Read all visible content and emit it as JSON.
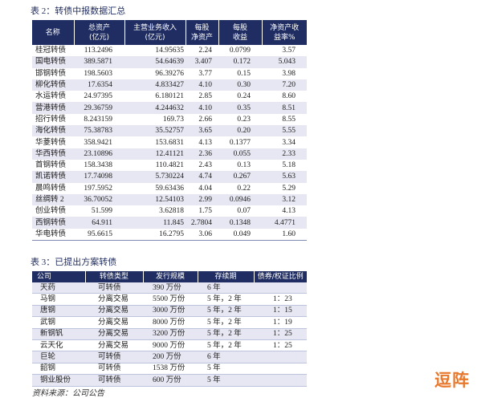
{
  "table2": {
    "title": "表 2：转债中报数据汇总",
    "headers": [
      [
        "名称"
      ],
      [
        "总资产",
        "(亿元)"
      ],
      [
        "主营业务收入",
        "(亿元)"
      ],
      [
        "每股",
        "净资产"
      ],
      [
        "每股",
        "收益"
      ],
      [
        "净资产收",
        "益率%"
      ]
    ],
    "rows": [
      [
        "桂冠转债",
        "113.2496",
        "14.95635",
        "2.24",
        "0.0799",
        "3.57"
      ],
      [
        "国电转债",
        "389.5871",
        "54.64639",
        "3.407",
        "0.172",
        "5.043"
      ],
      [
        "邯钢转债",
        "198.5603",
        "96.39276",
        "3.77",
        "0.15",
        "3.98"
      ],
      [
        "柳化转债",
        "17.6354",
        "4.833427",
        "4.10",
        "0.30",
        "7.20"
      ],
      [
        "水运转债",
        "24.97395",
        "6.180121",
        "2.85",
        "0.24",
        "8.60"
      ],
      [
        "营港转债",
        "29.36759",
        "4.244632",
        "4.10",
        "0.35",
        "8.51"
      ],
      [
        "招行转债",
        "8.243159",
        "169.73",
        "2.66",
        "0.23",
        "8.55"
      ],
      [
        "海化转债",
        "75.38783",
        "35.52757",
        "3.65",
        "0.20",
        "5.55"
      ],
      [
        "华菱转债",
        "358.9421",
        "153.6831",
        "4.13",
        "0.1377",
        "3.34"
      ],
      [
        "华西转债",
        "23.10896",
        "12.41121",
        "2.36",
        "0.055",
        "2.33"
      ],
      [
        "首钢转债",
        "158.3438",
        "110.4821",
        "2.43",
        "0.13",
        "5.18"
      ],
      [
        "凯诺转债",
        "17.74098",
        "5.730224",
        "4.74",
        "0.267",
        "5.63"
      ],
      [
        "晨鸣转债",
        "197.5952",
        "59.63436",
        "4.04",
        "0.22",
        "5.29"
      ],
      [
        "丝绸转 2",
        "36.70052",
        "12.54103",
        "2.99",
        "0.0946",
        "3.12"
      ],
      [
        "创业转债",
        "51.599",
        "3.62818",
        "1.75",
        "0.07",
        "4.13"
      ],
      [
        "西钢转债",
        "64.911",
        "11.845",
        "2.7804",
        "0.1348",
        "4.4771"
      ],
      [
        "华电转债",
        "95.6615",
        "16.2795",
        "3.06",
        "0.049",
        "1.60"
      ]
    ]
  },
  "table3": {
    "title": "表 3：已提出方案转债",
    "headers": [
      [
        "公司"
      ],
      [
        "转债类型"
      ],
      [
        "发行规模"
      ],
      [
        "存续期"
      ],
      [
        "债券/权证比例"
      ]
    ],
    "rows": [
      [
        "天药",
        "可转债",
        "390 万份",
        "6 年",
        ""
      ],
      [
        "马钢",
        "分离交易",
        "5500 万份",
        "5 年，2 年",
        "1：23"
      ],
      [
        "唐钢",
        "分离交易",
        "3000 万份",
        "5 年，2 年",
        "1：15"
      ],
      [
        "武钢",
        "分离交易",
        "8000 万份",
        "5 年，2 年",
        "1：19"
      ],
      [
        "新钢钒",
        "分离交易",
        "3200 万份",
        "5 年，2 年",
        "1：25"
      ],
      [
        "云天化",
        "分离交易",
        "9000 万份",
        "5 年，2 年",
        "1：25"
      ],
      [
        "巨轮",
        "可转债",
        "200 万份",
        "6 年",
        ""
      ],
      [
        "韶钢",
        "可转债",
        "1538 万份",
        "5 年",
        ""
      ],
      [
        "铜业股份",
        "可转债",
        "600 万份",
        "5 年",
        ""
      ]
    ]
  },
  "source": "资料来源：公司公告",
  "logo": {
    "text": "逗阵"
  },
  "colors": {
    "header_bg": "#1f2d62",
    "row_alt": "#e7e7f3",
    "row_line": "#bcc3dd",
    "title": "#1f2b5e",
    "logo": "#e8782c"
  }
}
